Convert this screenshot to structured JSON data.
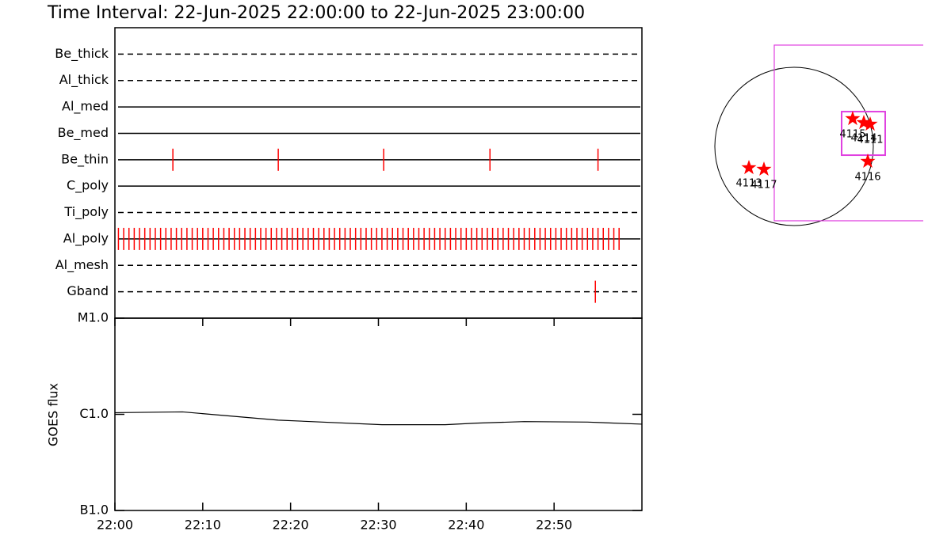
{
  "chart_data": [
    {
      "type": "event",
      "title": "Time Interval: 22-Jun-2025 22:00:00 to 22-Jun-2025 23:00:00",
      "xlim": [
        0,
        60
      ],
      "color": "#ff0000",
      "categories": [
        "Be_thick",
        "Al_thick",
        "Al_med",
        "Be_med",
        "Be_thin",
        "C_poly",
        "Ti_poly",
        "Al_poly",
        "Al_mesh",
        "Gband"
      ],
      "line_styles": [
        "dashed",
        "dashed",
        "solid",
        "solid",
        "solid",
        "solid",
        "dashed",
        "solid",
        "dashed",
        "dashed"
      ],
      "events": [
        [],
        [],
        [],
        [],
        [
          6.6,
          18.6,
          30.6,
          42.7,
          55.0
        ],
        [],
        [],
        [
          0.4,
          1.0,
          1.6,
          2.2,
          2.8,
          3.4,
          4.0,
          4.6,
          5.2,
          5.8,
          6.4,
          7.0,
          7.6,
          8.2,
          8.8,
          9.4,
          10.0,
          10.6,
          11.2,
          11.8,
          12.4,
          13.0,
          13.6,
          14.2,
          14.8,
          15.4,
          16.0,
          16.6,
          17.2,
          17.8,
          18.4,
          19.0,
          19.6,
          20.2,
          20.8,
          21.4,
          22.0,
          22.6,
          23.2,
          23.8,
          24.4,
          25.0,
          25.6,
          26.2,
          26.8,
          27.4,
          28.0,
          28.6,
          29.2,
          29.8,
          30.4,
          31.0,
          31.6,
          32.2,
          32.8,
          33.4,
          34.0,
          34.6,
          35.2,
          35.8,
          36.4,
          37.0,
          37.6,
          38.2,
          38.8,
          39.4,
          40.0,
          40.6,
          41.2,
          41.8,
          42.4,
          43.0,
          43.6,
          44.2,
          44.8,
          45.4,
          46.0,
          46.6,
          47.2,
          47.8,
          48.4,
          49.0,
          49.6,
          50.2,
          50.8,
          51.4,
          52.0,
          52.6,
          53.2,
          53.8,
          54.4,
          55.0,
          55.6,
          56.2,
          56.8,
          57.4
        ],
        [],
        [
          54.7
        ]
      ]
    },
    {
      "type": "line",
      "ylabel": "GOES flux",
      "log_scale": true,
      "color": "#000000",
      "x": [
        0,
        7.7,
        18.6,
        30.4,
        37.6,
        41.2,
        46.6,
        53.8,
        60
      ],
      "values": [
        1.04e-06,
        1.06e-06,
        8.7e-07,
        7.8e-07,
        7.8e-07,
        8.1e-07,
        8.4e-07,
        8.3e-07,
        7.9e-07
      ],
      "xlim": [
        0,
        60
      ],
      "xticks": [
        {
          "value": 0,
          "label": "22:00"
        },
        {
          "value": 10,
          "label": "22:10"
        },
        {
          "value": 20,
          "label": "22:20"
        },
        {
          "value": 30,
          "label": "22:30"
        },
        {
          "value": 40,
          "label": "22:40"
        },
        {
          "value": 50,
          "label": "22:50"
        }
      ],
      "ylim": [
        1e-07,
        1e-05
      ],
      "yticks": [
        {
          "value": 1e-07,
          "label": "B1.0"
        },
        {
          "value": 1e-06,
          "label": "C1.0"
        },
        {
          "value": 1e-05,
          "label": "M1.0"
        }
      ]
    },
    {
      "type": "map",
      "xlim": [
        -1171,
        1565
      ],
      "ylim": [
        -1104,
        1392
      ],
      "sun_radius": 960,
      "box_color": "#e040e0",
      "star_color": "#ff0000",
      "boxes": [
        {
          "x": [
            -240,
            1600
          ],
          "y": [
            -902,
            1229
          ]
        },
        {
          "x": [
            576,
            1104
          ],
          "y": [
            -106,
            422
          ]
        }
      ],
      "points": [
        {
          "label": "4115",
          "x": 710,
          "y": 336
        },
        {
          "label": "4114",
          "x": 845,
          "y": 288
        },
        {
          "label": "4111",
          "x": 922,
          "y": 269
        },
        {
          "label": "4116",
          "x": 893,
          "y": -182
        },
        {
          "label": "4113",
          "x": -547,
          "y": -259
        },
        {
          "label": "4117",
          "x": -365,
          "y": -278
        }
      ]
    }
  ]
}
